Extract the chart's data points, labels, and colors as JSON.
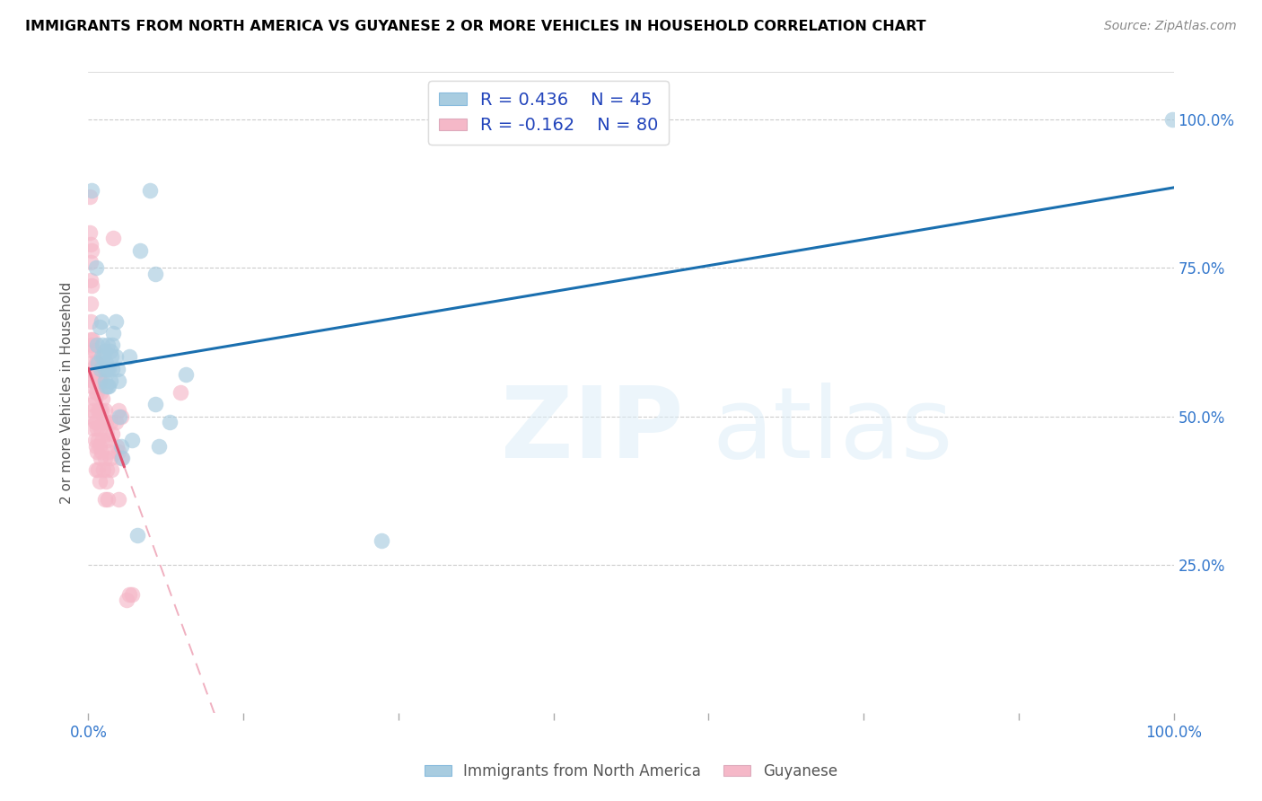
{
  "title": "IMMIGRANTS FROM NORTH AMERICA VS GUYANESE 2 OR MORE VEHICLES IN HOUSEHOLD CORRELATION CHART",
  "source": "Source: ZipAtlas.com",
  "ylabel": "2 or more Vehicles in Household",
  "legend_blue_r": "0.436",
  "legend_blue_n": "45",
  "legend_pink_r": "-0.162",
  "legend_pink_n": "80",
  "legend_label_blue": "Immigrants from North America",
  "legend_label_pink": "Guyanese",
  "blue_color": "#a8cce0",
  "pink_color": "#f5b8c8",
  "trend_blue_color": "#1a6faf",
  "trend_pink_solid_color": "#e0506e",
  "trend_pink_dashed_color": "#f0b0c0",
  "blue_points": [
    [
      0.003,
      0.88
    ],
    [
      0.007,
      0.75
    ],
    [
      0.008,
      0.62
    ],
    [
      0.009,
      0.59
    ],
    [
      0.01,
      0.65
    ],
    [
      0.011,
      0.58
    ],
    [
      0.012,
      0.66
    ],
    [
      0.012,
      0.6
    ],
    [
      0.013,
      0.62
    ],
    [
      0.014,
      0.6
    ],
    [
      0.015,
      0.61
    ],
    [
      0.015,
      0.58
    ],
    [
      0.015,
      0.56
    ],
    [
      0.016,
      0.59
    ],
    [
      0.016,
      0.55
    ],
    [
      0.017,
      0.58
    ],
    [
      0.018,
      0.62
    ],
    [
      0.018,
      0.55
    ],
    [
      0.019,
      0.58
    ],
    [
      0.019,
      0.55
    ],
    [
      0.02,
      0.61
    ],
    [
      0.02,
      0.56
    ],
    [
      0.021,
      0.6
    ],
    [
      0.022,
      0.58
    ],
    [
      0.022,
      0.62
    ],
    [
      0.023,
      0.64
    ],
    [
      0.025,
      0.66
    ],
    [
      0.025,
      0.6
    ],
    [
      0.027,
      0.58
    ],
    [
      0.028,
      0.56
    ],
    [
      0.029,
      0.5
    ],
    [
      0.03,
      0.45
    ],
    [
      0.031,
      0.43
    ],
    [
      0.038,
      0.6
    ],
    [
      0.04,
      0.46
    ],
    [
      0.045,
      0.3
    ],
    [
      0.048,
      0.78
    ],
    [
      0.057,
      0.88
    ],
    [
      0.062,
      0.74
    ],
    [
      0.062,
      0.52
    ],
    [
      0.065,
      0.45
    ],
    [
      0.075,
      0.49
    ],
    [
      0.09,
      0.57
    ],
    [
      0.27,
      0.29
    ],
    [
      0.999,
      1.0
    ]
  ],
  "pink_points": [
    [
      0.001,
      0.87
    ],
    [
      0.001,
      0.81
    ],
    [
      0.002,
      0.76
    ],
    [
      0.002,
      0.79
    ],
    [
      0.002,
      0.73
    ],
    [
      0.002,
      0.69
    ],
    [
      0.002,
      0.66
    ],
    [
      0.002,
      0.63
    ],
    [
      0.003,
      0.78
    ],
    [
      0.003,
      0.72
    ],
    [
      0.003,
      0.62
    ],
    [
      0.003,
      0.58
    ],
    [
      0.003,
      0.55
    ],
    [
      0.004,
      0.63
    ],
    [
      0.004,
      0.59
    ],
    [
      0.004,
      0.56
    ],
    [
      0.004,
      0.52
    ],
    [
      0.004,
      0.5
    ],
    [
      0.005,
      0.61
    ],
    [
      0.005,
      0.56
    ],
    [
      0.005,
      0.51
    ],
    [
      0.005,
      0.48
    ],
    [
      0.006,
      0.61
    ],
    [
      0.006,
      0.57
    ],
    [
      0.006,
      0.53
    ],
    [
      0.006,
      0.49
    ],
    [
      0.006,
      0.46
    ],
    [
      0.007,
      0.59
    ],
    [
      0.007,
      0.54
    ],
    [
      0.007,
      0.49
    ],
    [
      0.007,
      0.45
    ],
    [
      0.007,
      0.41
    ],
    [
      0.008,
      0.59
    ],
    [
      0.008,
      0.54
    ],
    [
      0.008,
      0.48
    ],
    [
      0.008,
      0.44
    ],
    [
      0.009,
      0.57
    ],
    [
      0.009,
      0.51
    ],
    [
      0.009,
      0.46
    ],
    [
      0.009,
      0.41
    ],
    [
      0.01,
      0.56
    ],
    [
      0.01,
      0.51
    ],
    [
      0.01,
      0.45
    ],
    [
      0.01,
      0.39
    ],
    [
      0.011,
      0.54
    ],
    [
      0.011,
      0.48
    ],
    [
      0.011,
      0.43
    ],
    [
      0.012,
      0.56
    ],
    [
      0.012,
      0.51
    ],
    [
      0.012,
      0.44
    ],
    [
      0.013,
      0.53
    ],
    [
      0.013,
      0.46
    ],
    [
      0.014,
      0.49
    ],
    [
      0.014,
      0.41
    ],
    [
      0.015,
      0.51
    ],
    [
      0.015,
      0.43
    ],
    [
      0.015,
      0.36
    ],
    [
      0.016,
      0.49
    ],
    [
      0.016,
      0.39
    ],
    [
      0.017,
      0.47
    ],
    [
      0.017,
      0.41
    ],
    [
      0.018,
      0.46
    ],
    [
      0.018,
      0.36
    ],
    [
      0.019,
      0.44
    ],
    [
      0.02,
      0.49
    ],
    [
      0.02,
      0.43
    ],
    [
      0.021,
      0.41
    ],
    [
      0.022,
      0.47
    ],
    [
      0.023,
      0.8
    ],
    [
      0.025,
      0.49
    ],
    [
      0.026,
      0.45
    ],
    [
      0.028,
      0.51
    ],
    [
      0.028,
      0.44
    ],
    [
      0.028,
      0.36
    ],
    [
      0.03,
      0.5
    ],
    [
      0.03,
      0.43
    ],
    [
      0.035,
      0.19
    ],
    [
      0.038,
      0.2
    ],
    [
      0.04,
      0.2
    ],
    [
      0.085,
      0.54
    ]
  ]
}
